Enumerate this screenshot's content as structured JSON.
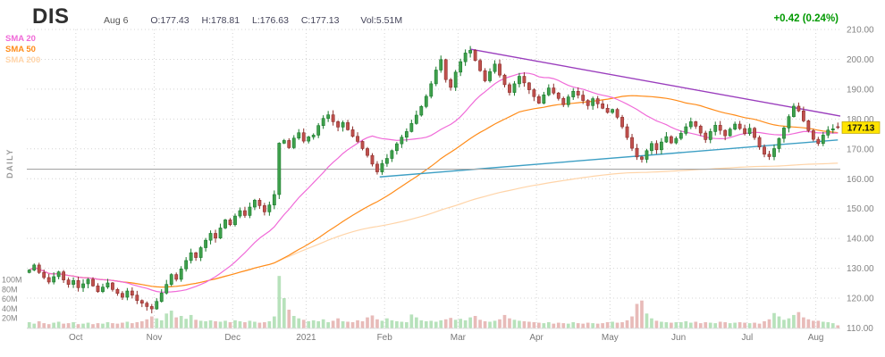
{
  "header": {
    "ticker": "DIS",
    "date": "Aug 6",
    "open_label": "O:177.43",
    "high_label": "H:178.81",
    "low_label": "L:176.63",
    "close_label": "C:177.13",
    "volume_label": "Vol:5.51M",
    "change": "+0.42 (0.24%)",
    "change_color": "#009900"
  },
  "timeframe_label": "DAILY",
  "last_price_tag": {
    "label": "177.13",
    "bg": "#ffe400",
    "text_color": "#111111"
  },
  "chart_data": {
    "type": "candlestick",
    "symbol": "DIS",
    "interval": "daily",
    "ylim": [
      110,
      210
    ],
    "price_ticks": [
      "210.00",
      "200.00",
      "190.00",
      "180.00",
      "170.00",
      "160.00",
      "150.00",
      "140.00",
      "130.00",
      "120.00",
      "110.00"
    ],
    "volume_ticks": [
      {
        "label": "100M",
        "value": 100
      },
      {
        "label": "80M",
        "value": 80
      },
      {
        "label": "60M",
        "value": 60
      },
      {
        "label": "40M",
        "value": 40
      },
      {
        "label": "20M",
        "value": 20
      }
    ],
    "months": [
      {
        "label": "Oct",
        "index": 10
      },
      {
        "label": "Nov",
        "index": 26
      },
      {
        "label": "Dec",
        "index": 42
      },
      {
        "label": "2021",
        "index": 57
      },
      {
        "label": "Feb",
        "index": 73
      },
      {
        "label": "Mar",
        "index": 88
      },
      {
        "label": "Apr",
        "index": 104
      },
      {
        "label": "May",
        "index": 119
      },
      {
        "label": "Jun",
        "index": 133
      },
      {
        "label": "Jul",
        "index": 147
      },
      {
        "label": "Aug",
        "index": 161
      }
    ],
    "first_open": 128.6,
    "closes": [
      129.4,
      131.1,
      128.6,
      126.9,
      125.4,
      127.2,
      128.8,
      126.1,
      124.6,
      125.9,
      123.5,
      124.8,
      126.3,
      124.1,
      122.2,
      123.7,
      125.1,
      122.9,
      121.6,
      120.3,
      122.4,
      121.0,
      119.2,
      118.3,
      117.2,
      116.4,
      118.9,
      121.7,
      124.6,
      127.9,
      126.3,
      129.8,
      132.6,
      135.2,
      133.6,
      136.9,
      139.4,
      141.7,
      140.1,
      143.5,
      146.2,
      144.6,
      147.5,
      149.3,
      147.7,
      150.5,
      152.8,
      151.0,
      148.9,
      151.2,
      154.7,
      171.9,
      172.8,
      170.4,
      173.6,
      175.4,
      172.6,
      174.0,
      174.6,
      177.8,
      180.2,
      181.4,
      179.1,
      177.3,
      178.8,
      176.4,
      174.2,
      172.5,
      170.1,
      167.8,
      164.9,
      162.3,
      165.1,
      166.8,
      169.4,
      171.7,
      173.9,
      175.8,
      178.5,
      181.3,
      184.2,
      187.6,
      191.8,
      196.4,
      199.9,
      193.2,
      190.6,
      195.7,
      199.2,
      202.1,
      203.0,
      199.6,
      196.2,
      192.8,
      195.9,
      198.4,
      194.7,
      191.5,
      188.9,
      191.8,
      194.3,
      192.1,
      189.8,
      187.5,
      185.3,
      188.1,
      190.4,
      188.7,
      186.9,
      184.8,
      187.4,
      189.3,
      188.0,
      186.2,
      184.5,
      186.8,
      185.1,
      183.6,
      182.2,
      183.2,
      180.6,
      177.4,
      173.8,
      170.2,
      167.3,
      166.5,
      169.4,
      171.8,
      169.7,
      172.3,
      174.1,
      172.0,
      173.5,
      175.2,
      177.4,
      179.1,
      177.6,
      175.3,
      173.1,
      175.8,
      177.9,
      176.2,
      174.4,
      176.6,
      178.3,
      176.8,
      175.1,
      176.9,
      173.8,
      170.6,
      168.2,
      167.4,
      170.1,
      173.5,
      177.0,
      180.8,
      184.3,
      182.7,
      179.4,
      176.1,
      173.2,
      171.8,
      174.6,
      176.3,
      176.71,
      177.13
    ],
    "volumes_m": [
      12,
      9,
      14,
      10,
      8,
      11,
      13,
      9,
      10,
      12,
      8,
      9,
      11,
      8,
      10,
      9,
      12,
      10,
      9,
      11,
      13,
      10,
      12,
      14,
      18,
      24,
      20,
      16,
      30,
      36,
      22,
      25,
      19,
      27,
      17,
      15,
      14,
      16,
      14,
      13,
      15,
      12,
      16,
      14,
      12,
      15,
      13,
      11,
      12,
      14,
      24,
      108,
      62,
      38,
      25,
      20,
      17,
      14,
      16,
      14,
      18,
      12,
      15,
      20,
      14,
      13,
      12,
      16,
      14,
      22,
      26,
      18,
      15,
      20,
      16,
      14,
      13,
      12,
      28,
      22,
      16,
      14,
      15,
      13,
      16,
      18,
      21,
      17,
      19,
      16,
      22,
      25,
      17,
      14,
      13,
      15,
      18,
      27,
      20,
      17,
      15,
      14,
      13,
      12,
      11,
      10,
      12,
      9,
      11,
      10,
      9,
      12,
      10,
      9,
      11,
      10,
      9,
      10,
      12,
      13,
      11,
      12,
      16,
      24,
      50,
      57,
      30,
      20,
      15,
      13,
      12,
      11,
      12,
      12,
      14,
      11,
      13,
      10,
      12,
      11,
      10,
      13,
      12,
      10,
      11,
      12,
      11,
      10,
      11,
      9,
      14,
      18,
      31,
      24,
      17,
      20,
      27,
      33,
      22,
      18,
      15,
      15,
      13,
      12,
      10,
      5.51
    ],
    "quote": {
      "open": 177.43,
      "high": 178.81,
      "low": 176.63,
      "close": 177.13,
      "volume_m": 5.51,
      "prev_close": 176.71,
      "change": 0.42,
      "change_pct": 0.24
    },
    "overlays": [
      {
        "name": "SMA 20",
        "window": 20,
        "color": "#f06ad8"
      },
      {
        "name": "SMA 50",
        "window": 50,
        "color": "#ff8c1a"
      },
      {
        "name": "SMA 200",
        "window": 200,
        "color": "#ffd4a8"
      }
    ],
    "trendlines": [
      {
        "name": "descending-resistance",
        "color": "#9a3dbd",
        "x1_index": 90,
        "price1": 203.4,
        "x2_index": 165.5,
        "price2": 181.0
      },
      {
        "name": "ascending-support",
        "color": "#3d9fc4",
        "x1_index": 71.5,
        "price1": 160.6,
        "x2_index": 165.0,
        "price2": 173.0
      },
      {
        "name": "horizontal-support",
        "color": "#a6a6a6",
        "price": 163.2
      }
    ],
    "style": {
      "up_fill": "#3fa04c",
      "up_stroke": "#177a2a",
      "down_fill": "#c0504d",
      "down_stroke": "#8c2e2b",
      "vol_up": "rgba(95,190,105,0.45)",
      "vol_down": "rgba(205,105,100,0.45)",
      "grid": "#d4d4d4",
      "axis_text": "#848484"
    }
  }
}
